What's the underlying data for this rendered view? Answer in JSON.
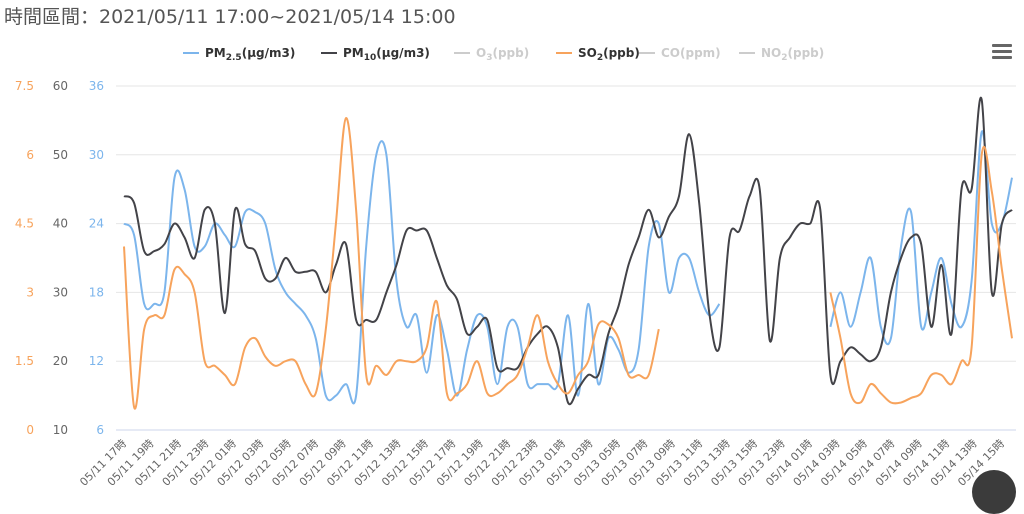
{
  "header": {
    "title": "時間區間：2021/05/11 17:00~2021/05/14 15:00"
  },
  "menu": {
    "icon": "hamburger-menu-icon"
  },
  "chart_data": {
    "type": "line",
    "legend": {
      "placement": "top-center",
      "items": [
        {
          "key": "pm25",
          "base": "PM",
          "sub": "2.5",
          "suffix": "(μg/m3)",
          "color": "#7cb5ec",
          "visible": true
        },
        {
          "key": "pm10",
          "base": "PM",
          "sub": "10",
          "suffix": "(μg/m3)",
          "color": "#434348",
          "visible": true
        },
        {
          "key": "o3",
          "base": "O",
          "sub": "3",
          "suffix": "(ppb)",
          "color": "#cccccc",
          "visible": false
        },
        {
          "key": "so2",
          "base": "SO",
          "sub": "2",
          "suffix": "(ppb)",
          "color": "#f7a35c",
          "visible": true
        },
        {
          "key": "co",
          "base": "CO",
          "sub": "",
          "suffix": "(ppm)",
          "color": "#cccccc",
          "visible": false
        },
        {
          "key": "no2",
          "base": "NO",
          "sub": "2",
          "suffix": "(ppb)",
          "color": "#cccccc",
          "visible": false
        }
      ]
    },
    "x_labels": [
      "05/11 17時",
      "05/11 19時",
      "05/11 21時",
      "05/11 23時",
      "05/12 01時",
      "05/12 03時",
      "05/12 05時",
      "05/12 07時",
      "05/12 09時",
      "05/12 11時",
      "05/12 13時",
      "05/12 15時",
      "05/12 17時",
      "05/12 19時",
      "05/12 21時",
      "05/12 23時",
      "05/13 01時",
      "05/13 03時",
      "05/13 05時",
      "05/13 07時",
      "05/13 09時",
      "05/13 11時",
      "05/13 13時",
      "05/13 15時",
      "05/13 23時",
      "05/14 01時",
      "05/14 03時",
      "05/14 05時",
      "05/14 07時",
      "05/14 09時",
      "05/14 11時",
      "05/14 13時",
      "05/14 15時"
    ],
    "axes": [
      {
        "id": "so2",
        "color": "#f7a35c",
        "min": 0,
        "max": 7.5,
        "ticks": [
          "0",
          "1.5",
          "3",
          "4.5",
          "6",
          "7.5"
        ]
      },
      {
        "id": "pm10",
        "color": "#666666",
        "min": 10,
        "max": 60,
        "ticks": [
          "10",
          "20",
          "30",
          "40",
          "50",
          "60"
        ]
      },
      {
        "id": "pm25",
        "color": "#7cb5ec",
        "min": 6,
        "max": 36,
        "ticks": [
          "6",
          "12",
          "18",
          "24",
          "30",
          "36"
        ]
      }
    ],
    "grid": true,
    "series": [
      {
        "key": "pm25",
        "name": "PM2.5(μg/m3)",
        "axis": "pm25",
        "color": "#7cb5ec",
        "values": [
          24,
          23,
          17,
          17,
          18,
          28,
          27,
          22,
          22,
          24,
          23,
          22,
          25,
          25,
          24,
          20,
          18,
          17,
          16,
          14,
          9,
          9,
          10,
          9,
          22,
          30,
          30,
          19,
          15,
          16,
          11,
          16,
          13,
          9,
          13,
          16,
          15,
          10,
          15,
          15,
          10,
          10,
          10,
          10,
          16,
          9,
          17,
          10,
          14,
          13,
          11,
          13,
          22,
          24,
          18,
          21,
          21,
          18,
          16,
          17,
          null,
          null,
          null,
          null,
          null,
          null,
          null,
          null,
          null,
          null,
          15,
          18,
          15,
          18,
          21,
          15,
          14,
          22,
          25,
          15,
          18,
          21,
          17,
          15,
          19,
          32,
          24,
          24,
          28
        ]
      },
      {
        "key": "pm10",
        "name": "PM10(μg/m3)",
        "axis": "pm10",
        "color": "#434348",
        "values": [
          44,
          43,
          36,
          36,
          37,
          40,
          38,
          35,
          42,
          40,
          27,
          42,
          37,
          36,
          32,
          32,
          35,
          33,
          33,
          33,
          30,
          34,
          37,
          26,
          26,
          26,
          30,
          34,
          39,
          39,
          39,
          35,
          31,
          29,
          24,
          25,
          26,
          19,
          19,
          19,
          22,
          24,
          25,
          22,
          14,
          16,
          18,
          18,
          24,
          28,
          34,
          38,
          42,
          38,
          41,
          44,
          53,
          43,
          27,
          22,
          38,
          39,
          44,
          45,
          23,
          35,
          38,
          40,
          40,
          42,
          18,
          20,
          22,
          21,
          20,
          22,
          30,
          35,
          38,
          37,
          25,
          34,
          24,
          45,
          45,
          58,
          30,
          40,
          42
        ]
      },
      {
        "key": "so2",
        "name": "SO2(ppb)",
        "axis": "so2",
        "color": "#f7a35c",
        "values": [
          4,
          0.5,
          2.2,
          2.5,
          2.5,
          3.5,
          3.4,
          3,
          1.5,
          1.4,
          1.2,
          1,
          1.8,
          2,
          1.6,
          1.4,
          1.5,
          1.5,
          1,
          0.8,
          2.2,
          4.5,
          6.8,
          4.8,
          1.2,
          1.4,
          1.2,
          1.5,
          1.5,
          1.5,
          1.8,
          2.8,
          0.8,
          0.8,
          1.0,
          1.5,
          0.8,
          0.8,
          1,
          1.2,
          1.8,
          2.5,
          1.5,
          1,
          0.8,
          1.2,
          1.5,
          2.3,
          2.3,
          2,
          1.2,
          1.2,
          1.2,
          2.2,
          null,
          null,
          null,
          null,
          null,
          null,
          null,
          null,
          null,
          null,
          null,
          null,
          null,
          null,
          null,
          null,
          3,
          2,
          0.8,
          0.6,
          1,
          0.8,
          0.6,
          0.6,
          0.7,
          0.8,
          1.2,
          1.2,
          1.0,
          1.5,
          1.8,
          6,
          5.2,
          3.5,
          2
        ]
      }
    ]
  }
}
